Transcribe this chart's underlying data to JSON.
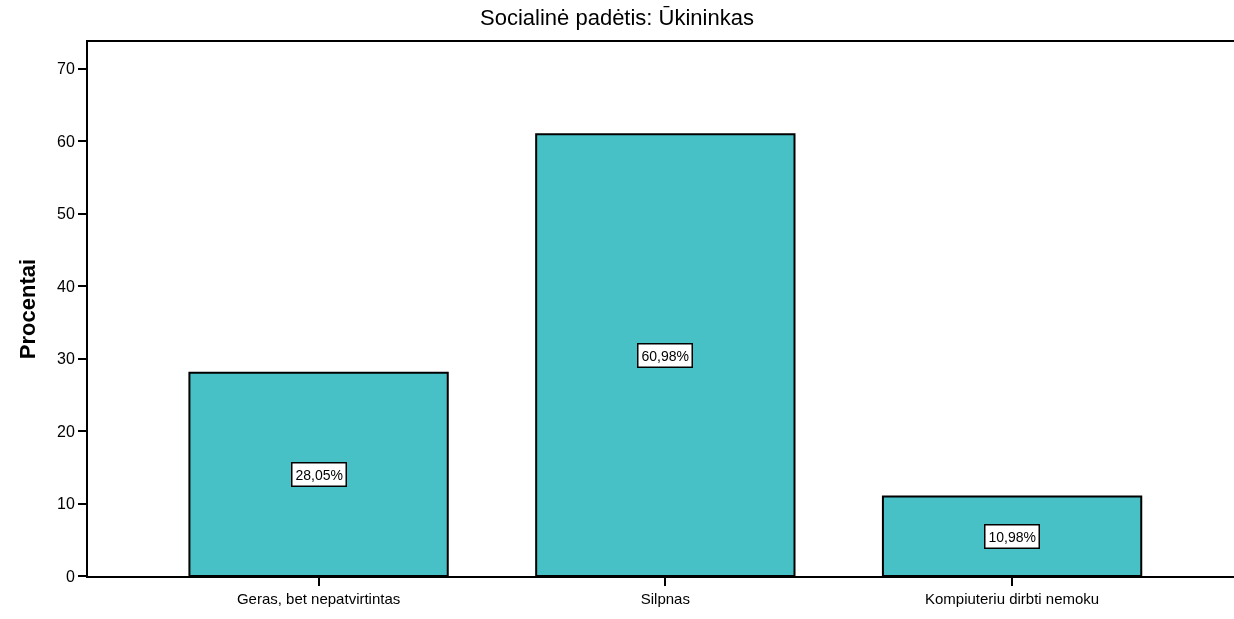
{
  "chart_data": {
    "type": "bar",
    "title": "Socialinė padėtis: Ūkininkas",
    "ylabel": "Procentai",
    "categories": [
      "Geras, bet nepatvirtintas",
      "Silpnas",
      "Kompiuteriu dirbti nemoku"
    ],
    "values": [
      28.05,
      60.98,
      10.98
    ],
    "value_labels": [
      "28,05%",
      "60,98%",
      "10,98%"
    ],
    "color": "#48c1c6",
    "ylim": [
      0,
      73.7
    ],
    "yticks": [
      0,
      10,
      20,
      30,
      40,
      50,
      60,
      70
    ],
    "legend": false
  }
}
